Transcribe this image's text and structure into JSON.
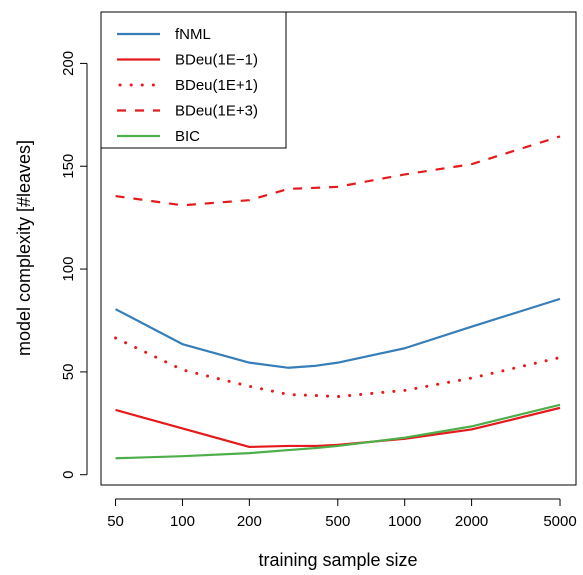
{
  "chart_data": {
    "type": "line",
    "xlabel": "training sample size",
    "ylabel": "model complexity [#leaves]",
    "x_scale": "log",
    "xlim": [
      43,
      5900
    ],
    "ylim": [
      -5,
      225
    ],
    "x_ticks": [
      50,
      100,
      200,
      500,
      1000,
      2000,
      5000
    ],
    "x_tick_labels": [
      "50",
      "100",
      "200",
      "500",
      "1000",
      "2000",
      "5000"
    ],
    "y_ticks": [
      0,
      50,
      100,
      150,
      200
    ],
    "y_tick_labels": [
      "0",
      "50",
      "100",
      "150",
      "200"
    ],
    "grid": false,
    "legend_position": "top-left",
    "x": [
      50,
      100,
      200,
      300,
      400,
      500,
      1000,
      2000,
      5000
    ],
    "series": [
      {
        "name": "fNML",
        "color": "#377eb8",
        "style": "solid",
        "values": [
          80.5,
          63.5,
          54.5,
          52,
          53,
          54.5,
          61.5,
          72,
          85.5
        ]
      },
      {
        "name": "BDeu(1E−1)",
        "color": "#e41a1c",
        "style": "solid",
        "values": [
          31.5,
          22.5,
          13.5,
          14,
          14,
          14.5,
          17.5,
          22,
          32.5
        ]
      },
      {
        "name": "BDeu(1E+1)",
        "color": "#e41a1c",
        "style": "dotted",
        "values": [
          66.5,
          51,
          43,
          39,
          38.5,
          38,
          41,
          47,
          57
        ]
      },
      {
        "name": "BDeu(1E+3)",
        "color": "#e41a1c",
        "style": "dashed",
        "values": [
          135.5,
          131,
          133.5,
          139,
          139.5,
          140,
          146,
          151,
          164.5
        ]
      },
      {
        "name": "BIC",
        "color": "#4daf4a",
        "style": "solid",
        "values": [
          8,
          9,
          10.5,
          12,
          13,
          14,
          18,
          23.5,
          34
        ]
      }
    ]
  }
}
